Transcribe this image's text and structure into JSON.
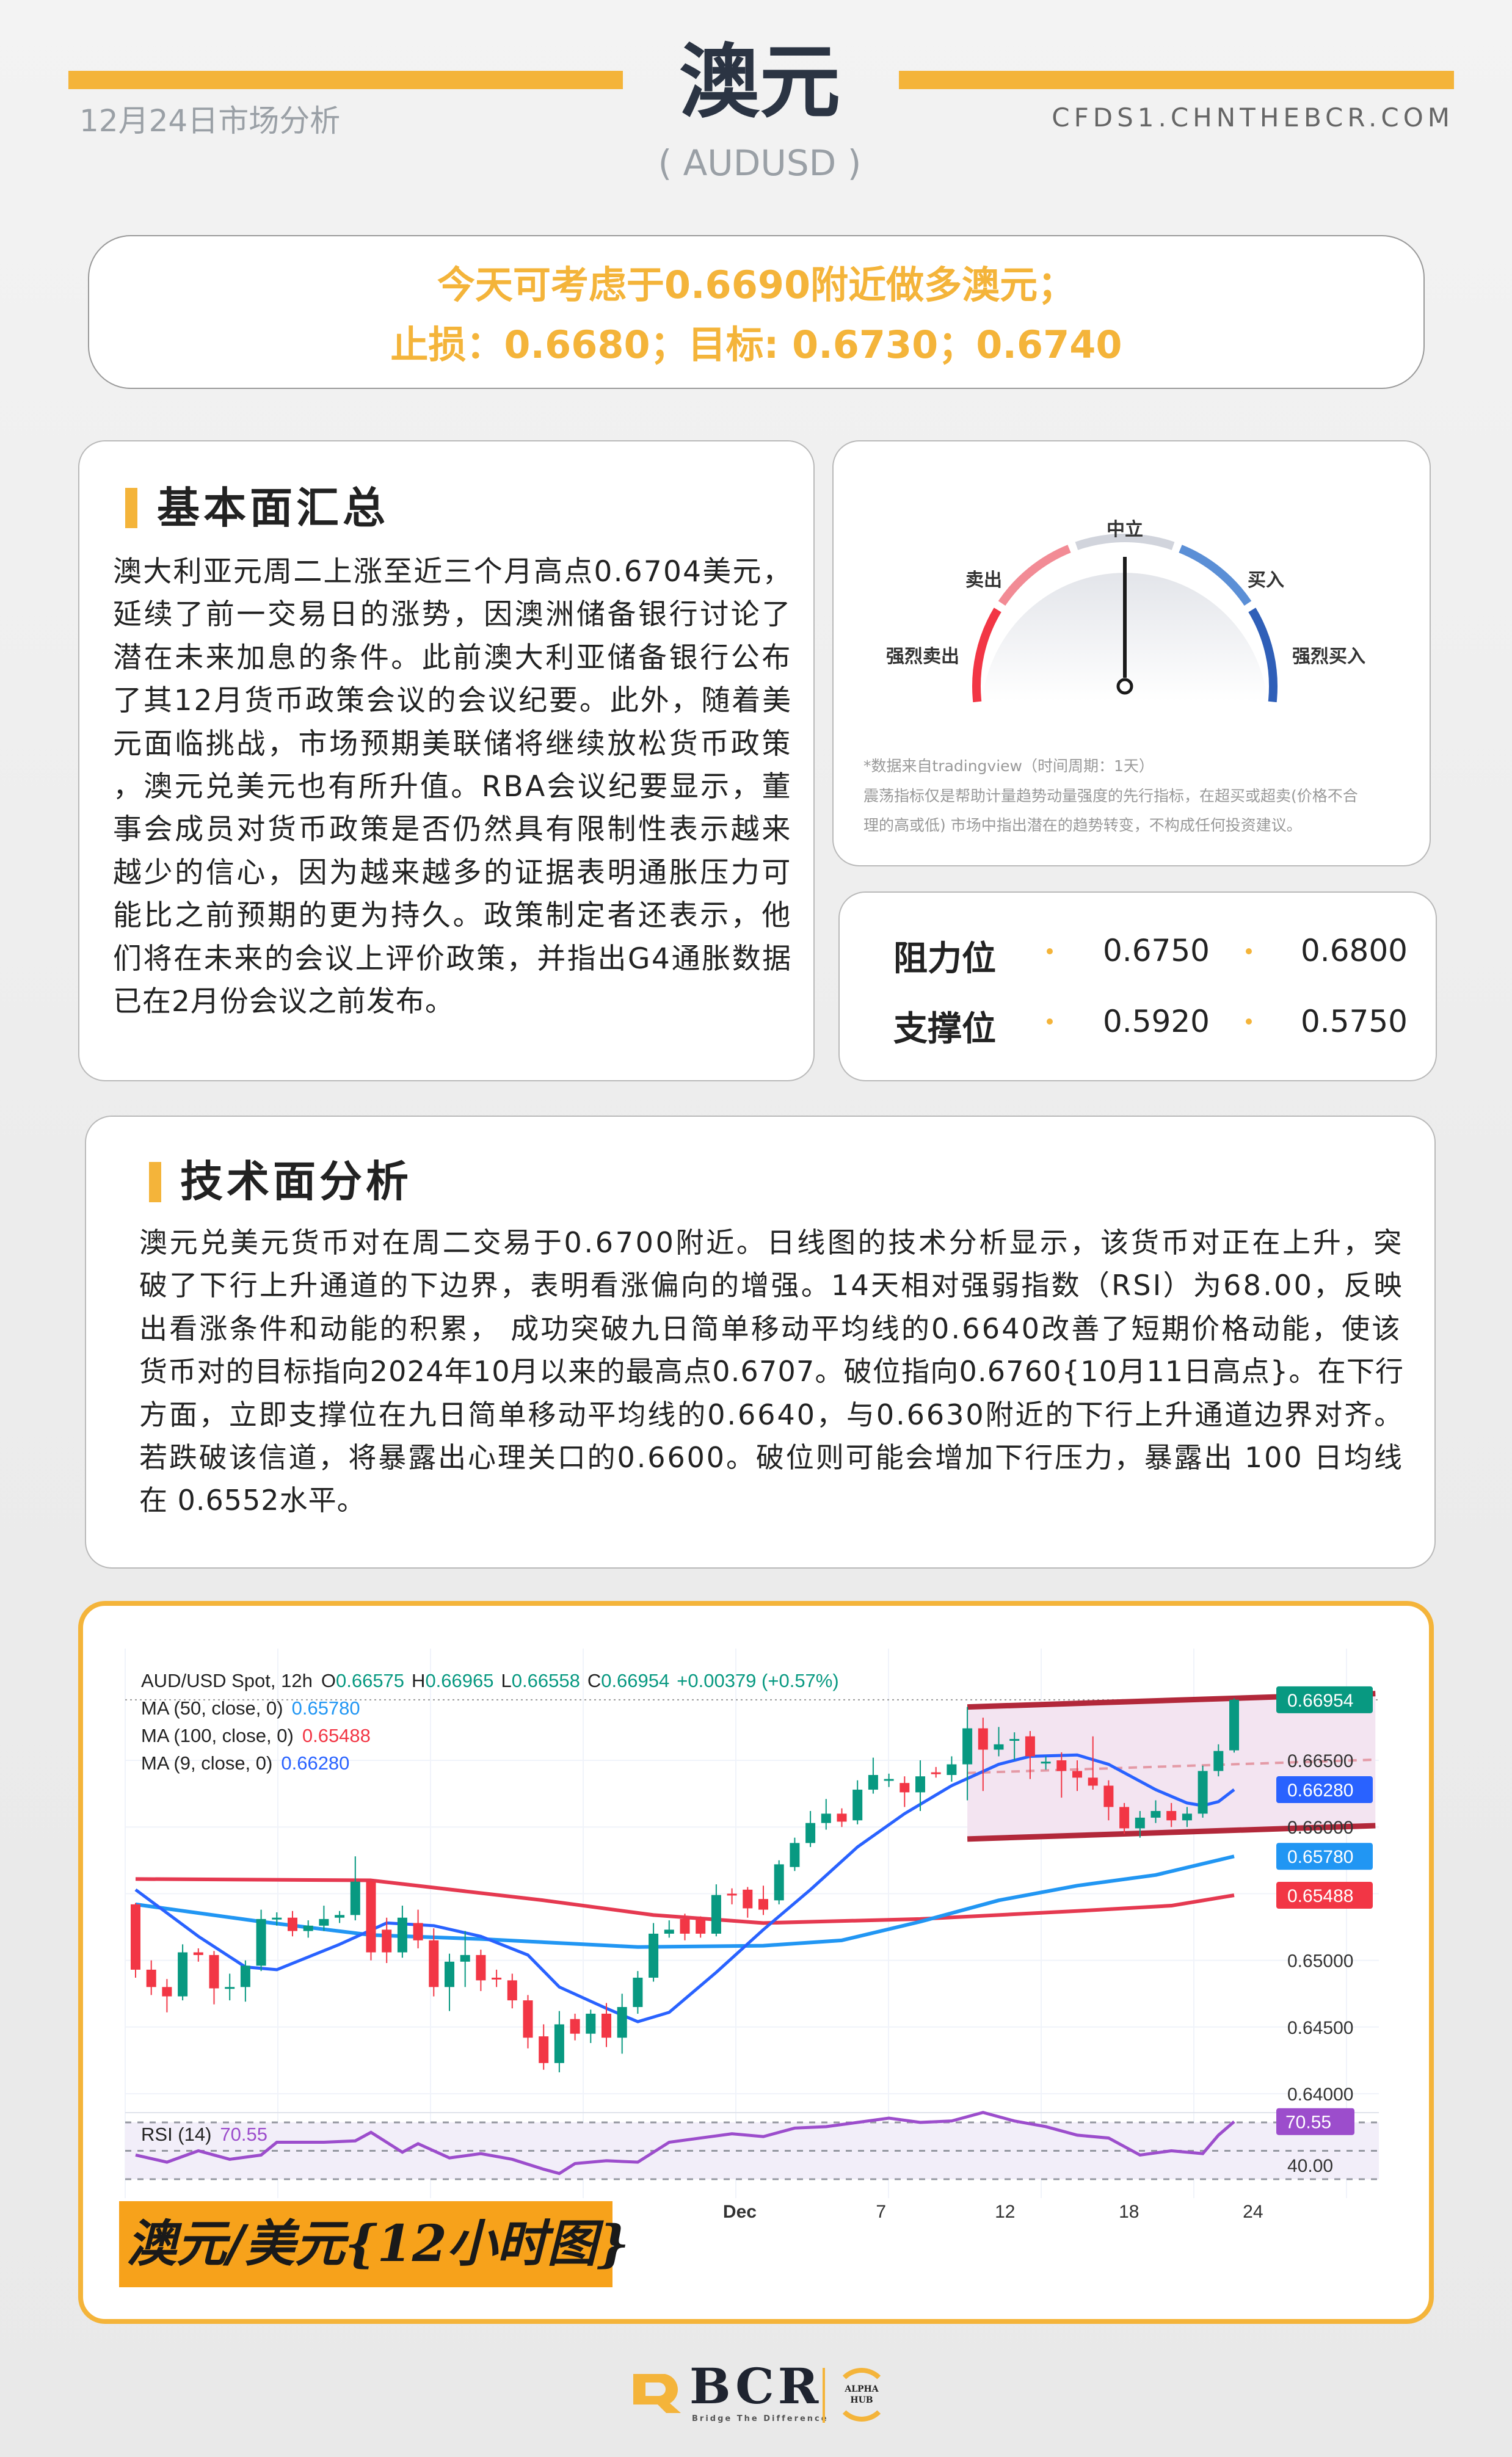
{
  "header": {
    "title": "澳元",
    "symbol": "( AUDUSD )",
    "date_label": "12月24日市场分析",
    "url": "CFDS1.CHNTHEBCR.COM",
    "accent_color": "#f4b43a"
  },
  "recommendation": {
    "line1": "今天可考虑于0.6690附近做多澳元；",
    "line2": "止损：0.6680；目标: 0.6730；0.6740"
  },
  "fundamentals": {
    "heading": "基本面汇总",
    "lines": [
      "澳大利亚元周二上涨至近三个月高点0.6704美元，",
      "延续了前一交易日的涨势，因澳洲储备银行讨论了",
      "潜在未来加息的条件。此前澳大利亚储备银行公布",
      "了其12月货币政策会议的会议纪要。此外，随着美",
      "元面临挑战，市场预期美联储将继续放松货币政策",
      "，澳元兑美元也有所升值。RBA会议纪要显示，董",
      "事会成员对货币政策是否仍然具有限制性表示越来",
      "越少的信心，因为越来越多的证据表明通胀压力可",
      "能比之前预期的更为持久。政策制定者还表示，他",
      "们将在未来的会议上评价政策，并指出G4通胀数据",
      "已在2月份会议之前发布。"
    ]
  },
  "gauge": {
    "labels": {
      "strong_sell": "强烈卖出",
      "sell": "卖出",
      "neutral": "中立",
      "buy": "买入",
      "strong_buy": "强烈买入"
    },
    "needle_reading": "neutral",
    "colors": {
      "strong_sell": "#f23645",
      "sell": "#f28b95",
      "neutral": "#d1d4dc",
      "buy": "#5b8fd6",
      "strong_buy": "#2f5fb8"
    },
    "note_source": "*数据来自tradingview（时间周期：1天）",
    "note_line1": "震荡指标仅是帮助计量趋势动量强度的先行指标，在超买或超卖(价格不合",
    "note_line2": "理的高或低) 市场中指出潜在的趋势转变，不构成任何投资建议。"
  },
  "levels": {
    "resistance_label": "阻力位",
    "resistance": [
      "0.6750",
      "0.6800"
    ],
    "support_label": "支撑位",
    "support": [
      "0.5920",
      "0.5750"
    ]
  },
  "technical": {
    "heading": "技术面分析",
    "lines": [
      "澳元兑美元货币对在周二交易于0.6700附近。日线图的技术分析显示，该货币对正在上升，突",
      "破了下行上升通道的下边界，表明看涨偏向的增强。14天相对强弱指数（RSI）为68.00，反映",
      "出看涨条件和动能的积累，  成功突破九日简单移动平均线的0.6640改善了短期价格动能，使该",
      "货币对的目标指向2024年10月以来的最高点0.6707。破位指向0.6760{10月11日高点}。在下行",
      "方面，立即支撑位在九日简单移动平均线的0.6640，与0.6630附近的下行上升通道边界对齐。",
      "若跌破该信道，将暴露出心理关口的0.6600。破位则可能会增加下行压力，暴露出 100 日均线",
      "在 0.6552水平。"
    ]
  },
  "chart_data": {
    "type": "candlestick",
    "symbol_line": "AUD/USD Spot, 12h",
    "ohlc_text": {
      "open": "0.66575",
      "high": "0.66965",
      "low": "0.66558",
      "close": "0.66954",
      "change": "+0.00379 (+0.57%)"
    },
    "ohlc_prefix": {
      "open": "O",
      "high": "H",
      "low": "L",
      "close": "C"
    },
    "ma_legend": [
      {
        "label": "MA (50, close, 0)",
        "value": "0.65780",
        "color": "#2196f3"
      },
      {
        "label": "MA (100, close, 0)",
        "value": "0.65488",
        "color": "#f23645"
      },
      {
        "label": "MA (9, close, 0)",
        "value": "0.66280",
        "color": "#2962ff"
      }
    ],
    "colors": {
      "up": "#089981",
      "down": "#f23645",
      "rsi": "#9c4dcc",
      "channel": "#b2283a"
    },
    "candles": {
      "open": [
        0.6542,
        0.6493,
        0.648,
        0.6473,
        0.6506,
        0.6504,
        0.6479,
        0.648,
        0.6496,
        0.6531,
        0.6532,
        0.6522,
        0.6526,
        0.6532,
        0.6534,
        0.6559,
        0.6523,
        0.6506,
        0.6528,
        0.6515,
        0.648,
        0.6499,
        0.6504,
        0.6487,
        0.6485,
        0.647,
        0.6443,
        0.6423,
        0.6456,
        0.6445,
        0.646,
        0.6442,
        0.6465,
        0.6487,
        0.652,
        0.6531,
        0.6531,
        0.652,
        0.655,
        0.6553,
        0.6546,
        0.6545,
        0.657,
        0.6588,
        0.6603,
        0.661,
        0.6605,
        0.6628,
        0.6635,
        0.6633,
        0.6626,
        0.6641,
        0.6639,
        0.6647,
        0.6674,
        0.6658,
        0.6666,
        0.6668,
        0.6649,
        0.665,
        0.6642,
        0.6637,
        0.6631,
        0.6615,
        0.6599,
        0.6607,
        0.6612,
        0.6605,
        0.661,
        0.6642,
        0.66575
      ],
      "high": [
        0.6543,
        0.65,
        0.6486,
        0.6512,
        0.6509,
        0.6507,
        0.649,
        0.65,
        0.6538,
        0.6536,
        0.6537,
        0.653,
        0.6541,
        0.6537,
        0.6578,
        0.656,
        0.6532,
        0.6541,
        0.6538,
        0.6524,
        0.6505,
        0.6522,
        0.6508,
        0.6493,
        0.649,
        0.6474,
        0.6452,
        0.6462,
        0.646,
        0.6463,
        0.6468,
        0.6475,
        0.6492,
        0.6528,
        0.653,
        0.6535,
        0.6533,
        0.6557,
        0.6554,
        0.6555,
        0.6556,
        0.6575,
        0.6592,
        0.6612,
        0.6621,
        0.6614,
        0.6635,
        0.6652,
        0.664,
        0.6638,
        0.665,
        0.6645,
        0.6653,
        0.669,
        0.6682,
        0.6675,
        0.6671,
        0.6672,
        0.6653,
        0.6656,
        0.665,
        0.6668,
        0.6635,
        0.6618,
        0.6612,
        0.662,
        0.6618,
        0.6615,
        0.6646,
        0.6662,
        0.66965
      ],
      "low": [
        0.6487,
        0.6474,
        0.6461,
        0.647,
        0.6499,
        0.6467,
        0.647,
        0.6469,
        0.6492,
        0.6526,
        0.6518,
        0.6517,
        0.6522,
        0.6528,
        0.653,
        0.65,
        0.6498,
        0.6502,
        0.6509,
        0.6473,
        0.6462,
        0.648,
        0.6477,
        0.648,
        0.6464,
        0.6434,
        0.6418,
        0.6416,
        0.644,
        0.6438,
        0.6435,
        0.643,
        0.646,
        0.6484,
        0.6517,
        0.6515,
        0.6517,
        0.6518,
        0.6542,
        0.6532,
        0.6534,
        0.6542,
        0.6567,
        0.6585,
        0.6598,
        0.66,
        0.6602,
        0.6625,
        0.663,
        0.6615,
        0.6612,
        0.6637,
        0.6634,
        0.662,
        0.6627,
        0.6653,
        0.665,
        0.6636,
        0.6643,
        0.6622,
        0.6627,
        0.6628,
        0.6605,
        0.6595,
        0.6592,
        0.6603,
        0.66,
        0.66,
        0.6607,
        0.6638,
        0.66558
      ],
      "close": [
        0.6493,
        0.648,
        0.6473,
        0.6506,
        0.6504,
        0.6479,
        0.648,
        0.6496,
        0.6531,
        0.6532,
        0.6522,
        0.6526,
        0.6531,
        0.6534,
        0.6559,
        0.6506,
        0.6506,
        0.6532,
        0.6515,
        0.648,
        0.6499,
        0.6504,
        0.6485,
        0.6486,
        0.647,
        0.6442,
        0.6423,
        0.6452,
        0.6445,
        0.646,
        0.6442,
        0.6465,
        0.6487,
        0.652,
        0.6523,
        0.652,
        0.652,
        0.6549,
        0.6549,
        0.6539,
        0.6538,
        0.6572,
        0.6588,
        0.6603,
        0.661,
        0.6604,
        0.6628,
        0.6639,
        0.6636,
        0.6626,
        0.6638,
        0.664,
        0.6647,
        0.6674,
        0.6658,
        0.6662,
        0.6666,
        0.6653,
        0.6649,
        0.6642,
        0.6637,
        0.6631,
        0.6615,
        0.6599,
        0.6607,
        0.6612,
        0.6605,
        0.661,
        0.6642,
        0.6657,
        0.66954
      ]
    },
    "ma100": [
      [
        0,
        0.6561
      ],
      [
        15,
        0.656
      ],
      [
        26,
        0.6545
      ],
      [
        33,
        0.6534
      ],
      [
        40,
        0.6528
      ],
      [
        50,
        0.6531
      ],
      [
        60,
        0.6537
      ],
      [
        66,
        0.6541
      ],
      [
        70,
        0.65488
      ]
    ],
    "ma50": [
      [
        0,
        0.6542
      ],
      [
        8,
        0.6529
      ],
      [
        15,
        0.6519
      ],
      [
        22,
        0.6516
      ],
      [
        32,
        0.651
      ],
      [
        40,
        0.6511
      ],
      [
        45,
        0.6515
      ],
      [
        50,
        0.6529
      ],
      [
        55,
        0.6545
      ],
      [
        60,
        0.6556
      ],
      [
        65,
        0.6564
      ],
      [
        70,
        0.6578
      ]
    ],
    "ma9": [
      [
        0,
        0.6553
      ],
      [
        4,
        0.6518
      ],
      [
        7,
        0.6495
      ],
      [
        9,
        0.6493
      ],
      [
        13,
        0.6512
      ],
      [
        16,
        0.6528
      ],
      [
        19,
        0.6526
      ],
      [
        22,
        0.6518
      ],
      [
        25,
        0.6504
      ],
      [
        27,
        0.648
      ],
      [
        30,
        0.6464
      ],
      [
        32,
        0.6454
      ],
      [
        34,
        0.6461
      ],
      [
        37,
        0.6491
      ],
      [
        40,
        0.6523
      ],
      [
        43,
        0.6553
      ],
      [
        46,
        0.6585
      ],
      [
        49,
        0.661
      ],
      [
        52,
        0.6631
      ],
      [
        55,
        0.6647
      ],
      [
        57,
        0.6653
      ],
      [
        60,
        0.6654
      ],
      [
        62,
        0.6647
      ],
      [
        65,
        0.6628
      ],
      [
        67,
        0.6618
      ],
      [
        68,
        0.6616
      ],
      [
        69,
        0.6619
      ],
      [
        70,
        0.6628
      ]
    ],
    "channel": {
      "start_index": 53,
      "end_index": 79,
      "upper": [
        0.669,
        0.67
      ],
      "lower": [
        0.6591,
        0.6601
      ]
    },
    "y_ticks": [
      "0.66500",
      "0.66000",
      "0.65000",
      "0.64500",
      "0.64000"
    ],
    "price_badges": [
      {
        "value": "0.66954",
        "color": "#089981"
      },
      {
        "value": "0.66280",
        "color": "#2962ff"
      },
      {
        "value": "0.65780",
        "color": "#2196f3"
      },
      {
        "value": "0.65488",
        "color": "#f23645"
      }
    ],
    "x_ticks": [
      {
        "label": "Dec",
        "index": 38.5
      },
      {
        "label": "7",
        "index": 47.5
      },
      {
        "label": "12",
        "index": 55.4
      },
      {
        "label": "18",
        "index": 63.3
      },
      {
        "label": "24",
        "index": 71.2
      }
    ],
    "rsi": {
      "label": "RSI (14)",
      "value": "70.55",
      "tick": "40.00",
      "bands": [
        70,
        50,
        30
      ],
      "points": [
        [
          0,
          47
        ],
        [
          2,
          42
        ],
        [
          4,
          50
        ],
        [
          6,
          44
        ],
        [
          8,
          47
        ],
        [
          9,
          56
        ],
        [
          12,
          56
        ],
        [
          14,
          57
        ],
        [
          15,
          63
        ],
        [
          17,
          49
        ],
        [
          18,
          55
        ],
        [
          20,
          45
        ],
        [
          22,
          48
        ],
        [
          24,
          44
        ],
        [
          26,
          37
        ],
        [
          27,
          34
        ],
        [
          28,
          41
        ],
        [
          30,
          43
        ],
        [
          32,
          42
        ],
        [
          34,
          56
        ],
        [
          36,
          59
        ],
        [
          38,
          62
        ],
        [
          40,
          60
        ],
        [
          42,
          66
        ],
        [
          44,
          67
        ],
        [
          46,
          70
        ],
        [
          48,
          73
        ],
        [
          50,
          70
        ],
        [
          52,
          71
        ],
        [
          54,
          77
        ],
        [
          56,
          71
        ],
        [
          58,
          67
        ],
        [
          60,
          61
        ],
        [
          62,
          59
        ],
        [
          64,
          47
        ],
        [
          66,
          50
        ],
        [
          68,
          48
        ],
        [
          69,
          61
        ],
        [
          70,
          70.55
        ]
      ]
    },
    "caption": "澳元/美元{12小时图}"
  },
  "footer": {
    "brand": "BCR",
    "tagline": "Bridge The Difference",
    "partner_line1": "ALPHA",
    "partner_line2": "HUB"
  }
}
